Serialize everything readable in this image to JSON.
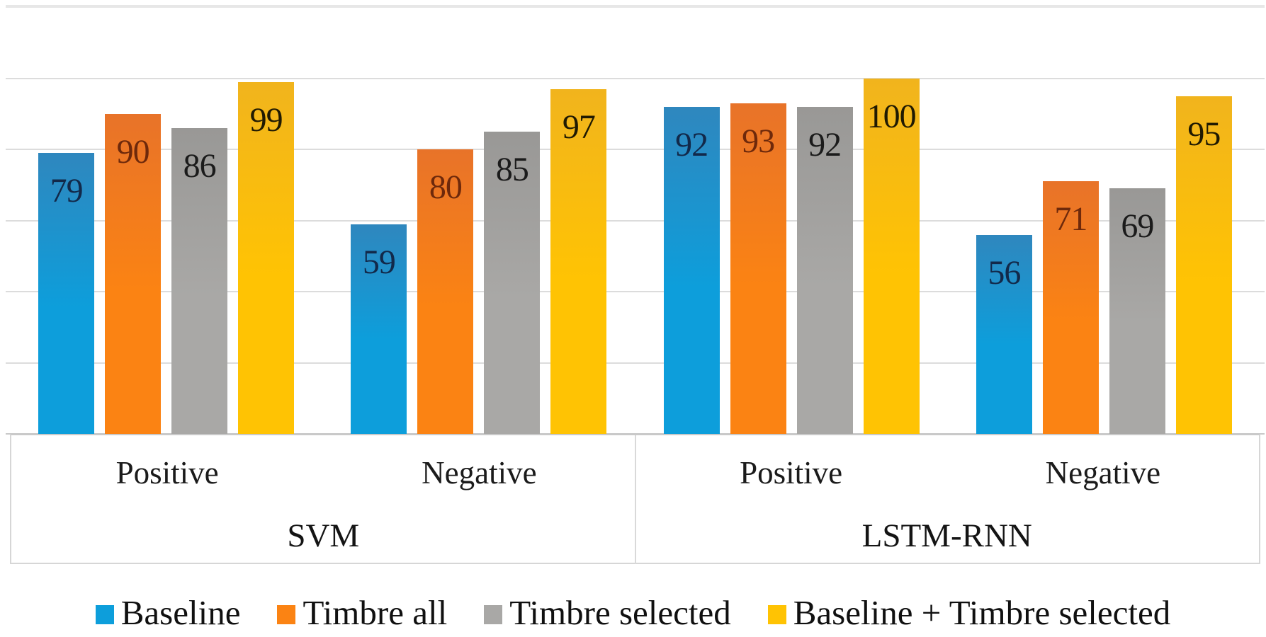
{
  "chart_data": {
    "type": "bar",
    "title": "",
    "ylim": [
      0,
      120
    ],
    "gridline_step": 20,
    "grid": true,
    "y_axis_labels_visible": false,
    "legend_position": "bottom",
    "value_label_position": "inside-end",
    "group_labels": [
      "SVM",
      "LSTM-RNN"
    ],
    "category_labels": [
      "Positive",
      "Negative",
      "Positive",
      "Negative"
    ],
    "categories": [
      "SVM Positive",
      "SVM Negative",
      "LSTM-RNN Positive",
      "LSTM-RNN Negative"
    ],
    "series": [
      {
        "name": "Baseline",
        "color": "#0D9EDB",
        "color_top": "#2F87BE",
        "label_color": "#12294A",
        "values": [
          79,
          59,
          92,
          56
        ]
      },
      {
        "name": "Timbre all",
        "color": "#FB8313",
        "color_top": "#E87329",
        "label_color": "#6E290B",
        "values": [
          90,
          80,
          93,
          71
        ]
      },
      {
        "name": "Timbre selected",
        "color": "#A9A8A6",
        "color_top": "#999896",
        "label_color": "#1B1B1B",
        "values": [
          86,
          85,
          92,
          69
        ]
      },
      {
        "name": "Baseline + Timbre selected",
        "color": "#FFC303",
        "color_top": "#F1B41D",
        "label_color": "#201A02",
        "values": [
          99,
          97,
          100,
          95
        ]
      }
    ]
  },
  "colors": {
    "gridline": "#DCDCDC",
    "gridline_top": "#E7E7E7",
    "axis_line": "#C9C9C9",
    "axis_box_border": "#D6D6D6",
    "background": "#FFFFFF"
  }
}
